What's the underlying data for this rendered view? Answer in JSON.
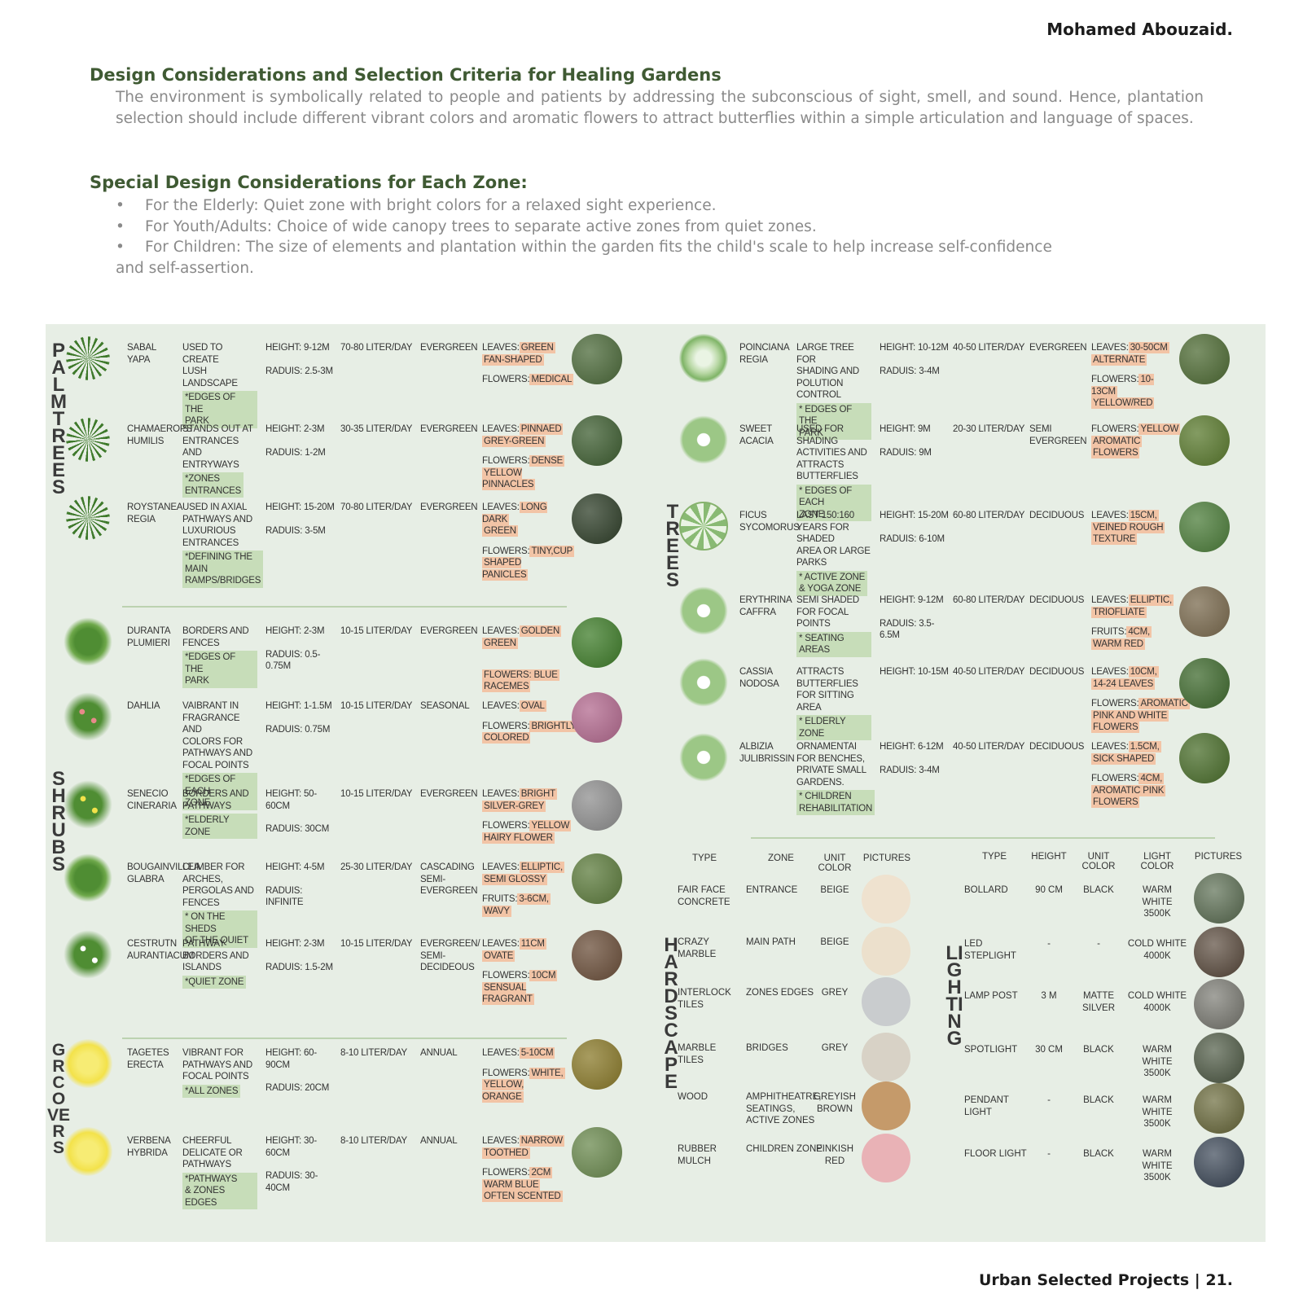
{
  "header": {
    "author": "Mohamed Abouzaid."
  },
  "intro": {
    "title": "Design Considerations and Selection Criteria for Healing Gardens",
    "body": "The environment is symbolically related to people and patients by addressing the subconscious of sight, smell, and sound. Hence, plantation selection should include different vibrant colors and aromatic flowers to attract butterflies within a simple articulation and language of spaces."
  },
  "zones": {
    "title": "Special Design Considerations for Each Zone:",
    "bullets": [
      "For the Elderly: Quiet zone with bright colors for a relaxed sight experience.",
      "For Youth/Adults: Choice of wide canopy trees to separate active zones from quiet zones.",
      "For Children: The size of elements and plantation within the garden fits the child's scale to help increase self-confidence"
    ],
    "bullet_continuation": "and self-assertion."
  },
  "categories": {
    "palm_trees": "PALM TREES",
    "shrubs": "SHRUBS",
    "groundcovers": "GRCOVERS",
    "trees": "TREES",
    "hardscape": "HARDSCAPE",
    "lighting": "LIGHTING"
  },
  "left_plants": [
    {
      "name": [
        "SABAL",
        "YAPA"
      ],
      "use": [
        "USED TO CREATE",
        "LUSH",
        "LANDSCAPE"
      ],
      "zone": [
        "*EDGES OF THE",
        "PARK"
      ],
      "height": "HEIGHT: 9-12m",
      "radius": "RADUIS: 2.5-3m",
      "water": "70-80 LITER/DAY",
      "type": [
        "EVERGREEN"
      ],
      "props": [
        {
          "label": "LEAVES:",
          "lines": [
            "GREEN",
            "FAN-SHAPED"
          ]
        },
        {
          "label": "FLOWERS:",
          "lines": [
            "MEDICAL"
          ]
        }
      ],
      "icon": "palm-plan-icon",
      "photo": "#4c6a3a"
    },
    {
      "name": [
        "CHAMAEROPS",
        "HUMILIS"
      ],
      "use": [
        "STANDS OUT AT",
        "ENTRANCES AND",
        "ENTRYWAYS"
      ],
      "zone": [
        "*ZONES",
        "ENTRANCES"
      ],
      "height": "HEIGHT: 2-3m",
      "radius": "RADUIS: 1-2m",
      "water": "30-35 LITER/DAY",
      "type": [
        "EVERGREEN"
      ],
      "props": [
        {
          "label": "LEAVES:",
          "lines": [
            "PINNAED",
            "GREY-GREEN"
          ]
        },
        {
          "label": "FLOWERS:",
          "lines": [
            "DENSE",
            "YELLOW PINNACLES"
          ]
        }
      ],
      "icon": "palm-plan-icon",
      "photo": "#3e5e31"
    },
    {
      "name": [
        "ROYSTANEA",
        "REGIA"
      ],
      "use": [
        "USED IN AXIAL",
        "PATHWAYS AND",
        "LUXURIOUS",
        "ENTRANCES"
      ],
      "zone": [
        "*DEFINING THE",
        "MAIN",
        "RAMPS/BRIDGES"
      ],
      "height": "HEIGHT: 15-20m",
      "radius": "RADUIS: 3-5m",
      "water": "70-80 LITER/DAY",
      "type": [
        "EVERGREEN"
      ],
      "props": [
        {
          "label": "LEAVES:",
          "lines": [
            "LONG DARK",
            "GREEN"
          ]
        },
        {
          "label": "FLOWERS:",
          "lines": [
            "TINY,CUP",
            "SHAPED PANICLES"
          ]
        }
      ],
      "icon": "palm-plan-icon",
      "photo": "#2f3f29"
    },
    {
      "name": [
        "DURANTA",
        "PLUMIERI"
      ],
      "use": [
        "BORDERS AND",
        "FENCES"
      ],
      "zone": [
        "*EDGES OF THE",
        "PARK"
      ],
      "height": "HEIGHT: 2-3m",
      "radius": "RADUIS: 0.5-0.75m",
      "water": "10-15 LITER/DAY",
      "type": [
        "EVERGREEN"
      ],
      "props": [
        {
          "label": "LEAVES:",
          "lines": [
            "GOLDEN",
            "GREEN"
          ]
        },
        {
          "label": "",
          "lines": [
            "FLOWERS: BLUE",
            "RACEMES"
          ]
        }
      ],
      "icon": "shrub-plan-icon",
      "photo": "#3f7d2a"
    },
    {
      "name": [
        "DAHLIA"
      ],
      "use": [
        "VAIBRANT IN",
        "FRAGRANCE AND",
        "COLORS FOR",
        "PATHWAYS AND",
        "FOCAL POINTS"
      ],
      "zone": [
        "*EDGES OF EACH",
        "ZONE"
      ],
      "height": "HEIGHT: 1-1.5m",
      "radius": "RADUIS: 0.75m",
      "water": "10-15 LITER/DAY",
      "type": [
        "SEASONAL"
      ],
      "props": [
        {
          "label": "LEAVES:",
          "lines": [
            "OVAL"
          ]
        },
        {
          "label": "FLOWERS:",
          "lines": [
            "BRIGHTLY",
            "COLORED"
          ]
        }
      ],
      "icon": "dahlia-plan-icon",
      "photo": "#b36a8f"
    },
    {
      "name": [
        "SENECIO",
        "CINERARIA"
      ],
      "use": [
        "BORDERS AND",
        "PATHWAYS"
      ],
      "zone": [
        "*ELDERLY ZONE"
      ],
      "height": "HEIGHT: 50-60cm",
      "radius": "RADUIS: 30cm",
      "water": "10-15 LITER/DAY",
      "type": [
        "EVERGREEN"
      ],
      "props": [
        {
          "label": "LEAVES:",
          "lines": [
            "BRIGHT",
            "SILVER-GREY"
          ]
        },
        {
          "label": "FLOWERS:",
          "lines": [
            "YELLOW",
            "HAIRY FLOWER"
          ]
        }
      ],
      "icon": "senecio-plan-icon",
      "photo": "#8f8f8f"
    },
    {
      "name": [
        "BOUGAINVILLEA",
        "GLABRA"
      ],
      "use": [
        "CLIMBER FOR",
        "ARCHES,",
        "PERGOLAS AND",
        "FENCES"
      ],
      "zone": [
        "* ON THE SHEDS",
        "OF THE QUIET"
      ],
      "height": "HEIGHT: 4-5m",
      "radius": "RADUIS: INFINITE",
      "water": "25-30 LITER/DAY",
      "type": [
        "CASCADING",
        "SEMI-",
        "EVERGREEN"
      ],
      "props": [
        {
          "label": "LEAVES:",
          "lines": [
            "ELLIPTIC,",
            "SEMI GLOSSY"
          ]
        },
        {
          "label": "FRUITS:",
          "lines": [
            "3-6cm,",
            "WAVY"
          ]
        }
      ],
      "icon": "bougainvillea-plan-icon",
      "photo": "#5d7c3d"
    },
    {
      "name": [
        "CESTRUTN",
        "AURANTIACUM"
      ],
      "use": [
        "PATHWAY",
        "BORDERS AND",
        "ISLANDS"
      ],
      "zone": [
        "*QUIET ZONE"
      ],
      "height": "HEIGHT: 2-3m",
      "radius": "RADUIS: 1.5-2m",
      "water": "10-15 LITER/DAY",
      "type": [
        "EVERGREEN/",
        "SEMI-",
        "DECIDEOUS"
      ],
      "props": [
        {
          "label": "LEAVES:",
          "lines": [
            "11cm",
            "OVATE"
          ]
        },
        {
          "label": "FLOWERS:",
          "lines": [
            "10cm",
            "SENSUAL FRAGRANT"
          ]
        }
      ],
      "icon": "cestrum-plan-icon",
      "photo": "#6b4f3a"
    },
    {
      "name": [
        "TAGETES",
        "ERECTA"
      ],
      "use": [
        "VIBRANT FOR",
        "PATHWAYS AND",
        "FOCAL POINTS"
      ],
      "zone": [
        "*ALL ZONES"
      ],
      "height": "HEIGHT: 60-90cm",
      "radius": "RADUIS: 20cm",
      "water": "8-10 LITER/DAY",
      "type": [
        "ANNUAL"
      ],
      "props": [
        {
          "label": "LEAVES:",
          "lines": [
            "5-10cm"
          ]
        },
        {
          "label": "FLOWERS:",
          "lines": [
            "WHITE,",
            "YELLOW, ORANGE"
          ]
        }
      ],
      "icon": "groundcover-plan-icon",
      "photo": "#8a7a2a"
    },
    {
      "name": [
        "VERBENA",
        "HYBRIDA"
      ],
      "use": [
        "CHEERFUL",
        "DELICATE OR",
        "PATHWAYS"
      ],
      "zone": [
        "*PATHWAYS",
        "& ZONES EDGES"
      ],
      "height": "HEIGHT: 30-60cm",
      "radius": "RADUIS: 30-40cm",
      "water": "8-10 LITER/DAY",
      "type": [
        "ANNUAL"
      ],
      "props": [
        {
          "label": "LEAVES:",
          "lines": [
            "NARROW",
            "TOOTHED"
          ]
        },
        {
          "label": "FLOWERS:",
          "lines": [
            "2cm",
            "WARM BLUE",
            "OFTEN SCENTED"
          ]
        }
      ],
      "icon": "groundcover-plan-icon",
      "photo": "#6b8a4f"
    }
  ],
  "trees": [
    {
      "name": [
        "POINCIANA",
        "REGIA"
      ],
      "use": [
        "LARGE TREE FOR",
        "SHADING AND",
        "POLUTION CONTROL"
      ],
      "zone": [
        "* EDGES OF THE",
        "PARK"
      ],
      "height": "HEIGHT: 10-12m",
      "radius": "RADUIS: 3-4m",
      "water": "40-50 LITER/DAY",
      "type": [
        "EVERGREEN"
      ],
      "props": [
        {
          "label": "LEAVES:",
          "lines": [
            "30-50cm",
            "ALTERNATE"
          ]
        },
        {
          "label": "FLOWERS:",
          "lines": [
            "10-13cm",
            "YELLOW/RED"
          ]
        }
      ],
      "photo": "#4e6b34"
    },
    {
      "name": [
        "SWEET",
        "ACACIA"
      ],
      "use": [
        "USED FOR SHADING",
        "ACTIVITIES AND",
        "ATTRACTS",
        "BUTTERFLIES"
      ],
      "zone": [
        "* EDGES OF EACH",
        "ZONE"
      ],
      "height": "HEIGHT: 9m",
      "radius": "RADUIS: 9m",
      "water": "20-30 LITER/DAY",
      "type": [
        "SEMI",
        "EVERGREEN"
      ],
      "props": [
        {
          "label": "FLOWERS:",
          "lines": [
            "YELLOW",
            "AROMATIC",
            "FLOWERS"
          ]
        }
      ],
      "photo": "#5a7a2e"
    },
    {
      "name": [
        "FICUS",
        "SYCOMORUS"
      ],
      "use": [
        "LAST 150:160",
        "YEARS FOR SHADED",
        "AREA OR LARGE",
        "PARKS"
      ],
      "zone": [
        "* ACTIVE ZONE",
        "& YOGA ZONE"
      ],
      "height": "HEIGHT: 15-20m",
      "radius": "RADUIS: 6-10m",
      "water": "60-80 LITER/DAY",
      "type": [
        "DECIDUOUS"
      ],
      "props": [
        {
          "label": "LEAVES:",
          "lines": [
            "15cm,",
            "VEINED ROUGH",
            "TEXTURE"
          ]
        }
      ],
      "photo": "#4c7d3a"
    },
    {
      "name": [
        "ERYTHRINA",
        "CAFFRA"
      ],
      "use": [
        "SEMI SHADED",
        "FOR FOCAL",
        "POINTS"
      ],
      "zone": [
        "* SEATING AREAS"
      ],
      "height": "HEIGHT: 9-12m",
      "radius": "RADUIS: 3.5-6.5m",
      "water": "60-80 LITER/DAY",
      "type": [
        "DECIDUOUS"
      ],
      "props": [
        {
          "label": "LEAVES:",
          "lines": [
            "ELLIPTIC,",
            "TRIOFLIATE"
          ]
        },
        {
          "label": "FRUITS:",
          "lines": [
            "4cm,",
            "WARM RED"
          ]
        }
      ],
      "photo": "#7a6a4e"
    },
    {
      "name": [
        "CASSIA",
        "NODOSA"
      ],
      "use": [
        "ATTRACTS",
        "BUTTERFLIES",
        "FOR SITTING",
        "AREA"
      ],
      "zone": [
        "* ELDERLY ZONE"
      ],
      "height": "HEIGHT: 10-15m",
      "radius": "",
      "water": "40-50 LITER/DAY",
      "type": [
        "DECIDUOUS"
      ],
      "props": [
        {
          "label": "LEAVES:",
          "lines": [
            "10cm,",
            "14-24 LEAVES"
          ]
        },
        {
          "label": "FLOWERS:",
          "lines": [
            "AROMATIC",
            "PINK AND WHITE",
            "FLOWERS"
          ]
        }
      ],
      "photo": "#3f6a2e"
    },
    {
      "name": [
        "ALBIZIA",
        "JULIBRISSIN"
      ],
      "use": [
        "ORNAMENTAI",
        "FOR BENCHES,",
        "PRIVATE SMALL",
        "GARDENS."
      ],
      "zone": [
        "* CHILDREN",
        "REHABILITATION"
      ],
      "height": "HEIGHT: 6-12m",
      "radius": "RADUIS: 3-4m",
      "water": "40-50 LITER/DAY",
      "type": [
        "DECIDUOUS"
      ],
      "props": [
        {
          "label": "LEAVES:",
          "lines": [
            "1.5cm,",
            "SICK SHAPED"
          ]
        },
        {
          "label": "FLOWERS:",
          "lines": [
            "4cm,",
            "AROMATIC PINK",
            "FLOWERS"
          ]
        }
      ],
      "photo": "#4a6e2b"
    }
  ],
  "hardscape": {
    "headers": [
      "TYPE",
      "ZONE",
      "UNIT COLOR",
      "PICTURES"
    ],
    "rows": [
      {
        "type": [
          "FAIR FACE",
          "CONCRETE"
        ],
        "zone": [
          "ENTRANCE"
        ],
        "color": [
          "BEIGE"
        ],
        "swatch": "#efe2cf"
      },
      {
        "type": [
          "CRAZY",
          "MARBLE"
        ],
        "zone": [
          "MAIN PATH"
        ],
        "color": [
          "BEIGE"
        ],
        "swatch": "#ece0cc"
      },
      {
        "type": [
          "INTERLOCK",
          "TILES"
        ],
        "zone": [
          "ZONES EDGES"
        ],
        "color": [
          "GREY"
        ],
        "swatch": "#c9ccce"
      },
      {
        "type": [
          "MARBLE",
          "TILES"
        ],
        "zone": [
          "BRIDGES"
        ],
        "color": [
          "GREY"
        ],
        "swatch": "#d8d2c6"
      },
      {
        "type": [
          "WOOD"
        ],
        "zone": [
          "AMPHITHEATRE,",
          "SEATINGS,",
          "ACTIVE ZONES"
        ],
        "color": [
          "GREYISH",
          "BROWN"
        ],
        "swatch": "#c59a6a"
      },
      {
        "type": [
          "RUBBER",
          "MULCH"
        ],
        "zone": [
          "CHILDREN ZONE"
        ],
        "color": [
          "PINKISH",
          "RED"
        ],
        "swatch": "#e9b2b6"
      }
    ]
  },
  "lighting": {
    "headers": [
      "TYPE",
      "HEIGHT",
      "UNIT COLOR",
      "LIGHT COLOR",
      "PICTURES"
    ],
    "rows": [
      {
        "type": "BOLLARD",
        "height": "90 CM",
        "unit": "BLACK",
        "light": [
          "WARM WHITE",
          "3500K"
        ],
        "photo": "#5b6e52"
      },
      {
        "type": "LED STEPLIGHT",
        "height": "-",
        "unit": "-",
        "light": [
          "COLD WHITE",
          "4000K"
        ],
        "photo": "#5a4a3c"
      },
      {
        "type": "LAMP POST",
        "height": "3 M",
        "unit": "MATTE SILVER",
        "light": [
          "COLD WHITE",
          "4000K"
        ],
        "photo": "#7a7a72"
      },
      {
        "type": "SPOTLIGHT",
        "height": "30 CM",
        "unit": "BLACK",
        "light": [
          "WARM WHITE",
          "3500K"
        ],
        "photo": "#4e5a44"
      },
      {
        "type": "PENDANT LIGHT",
        "height": "-",
        "unit": "BLACK",
        "light": [
          "WARM WHITE",
          "3500K"
        ],
        "photo": "#6a6a3a"
      },
      {
        "type": "FLOOR LIGHT",
        "height": "-",
        "unit": "BLACK",
        "light": [
          "WARM WHITE",
          "3500K"
        ],
        "photo": "#3a4656"
      }
    ]
  },
  "footer": {
    "text": "Urban Selected Projects  |  21."
  }
}
